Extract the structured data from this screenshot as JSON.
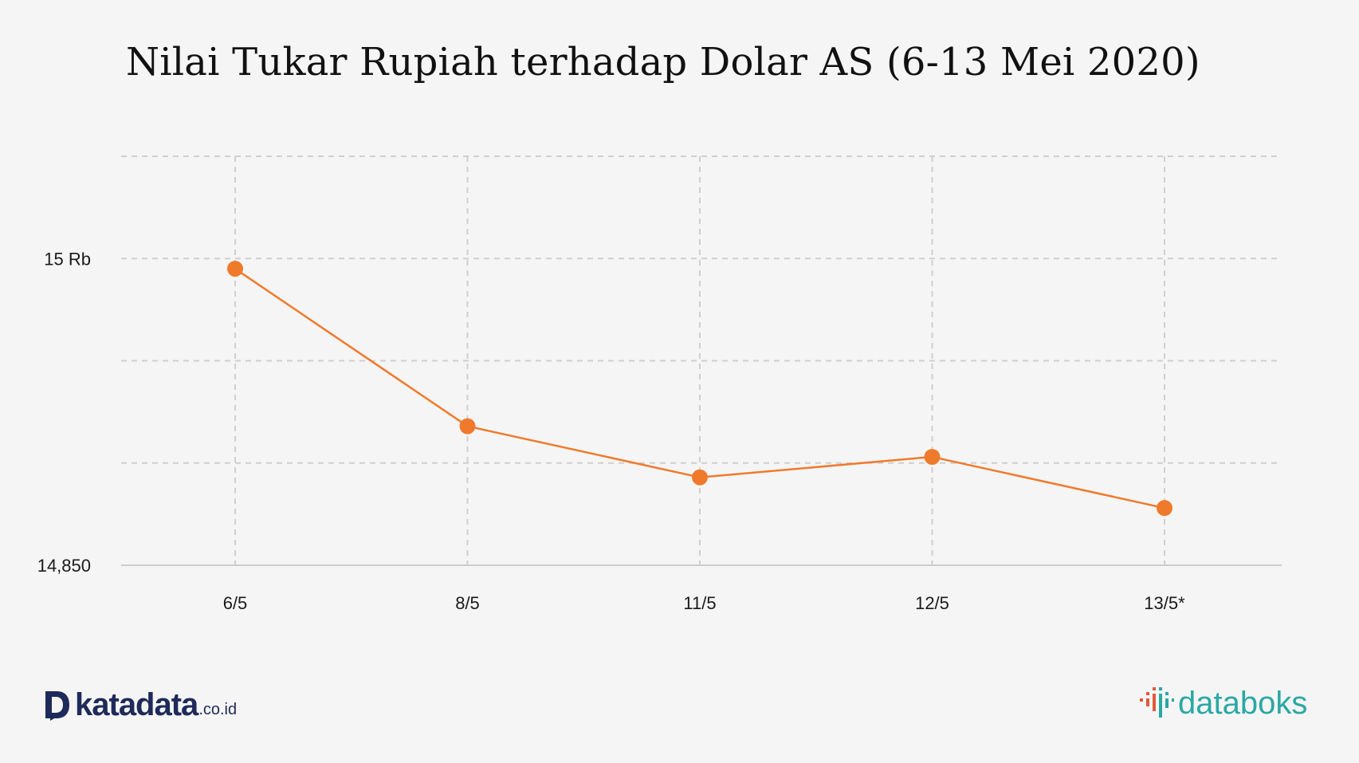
{
  "chart_data": {
    "type": "line",
    "title": "Nilai Tukar Rupiah terhadap Dolar AS (6-13 Mei 2020)",
    "categories": [
      "6/5",
      "8/5",
      "11/5",
      "12/5",
      "13/5*"
    ],
    "series": [
      {
        "values": [
          14995,
          14918,
          14893,
          14903,
          14878
        ],
        "color": "#f07a2c"
      }
    ],
    "ylim": [
      14850,
      15050
    ],
    "yticks": [
      {
        "value": 14850,
        "label": "14,850"
      },
      {
        "value": 15000,
        "label": "15 Rb"
      }
    ],
    "gridlines_y": [
      14900,
      14950,
      15000,
      15050
    ],
    "grid": true,
    "grid_style": "dashed",
    "xlabel": "",
    "ylabel": ""
  },
  "branding": {
    "left_logo": {
      "name": "katadata-logo",
      "word": "katadata",
      "domain": ".co.id",
      "color": "#1e2a5a"
    },
    "right_logo": {
      "name": "databoks-logo",
      "word": "databoks",
      "color": "#2aa8a4",
      "accent": "#e05a3a"
    }
  }
}
